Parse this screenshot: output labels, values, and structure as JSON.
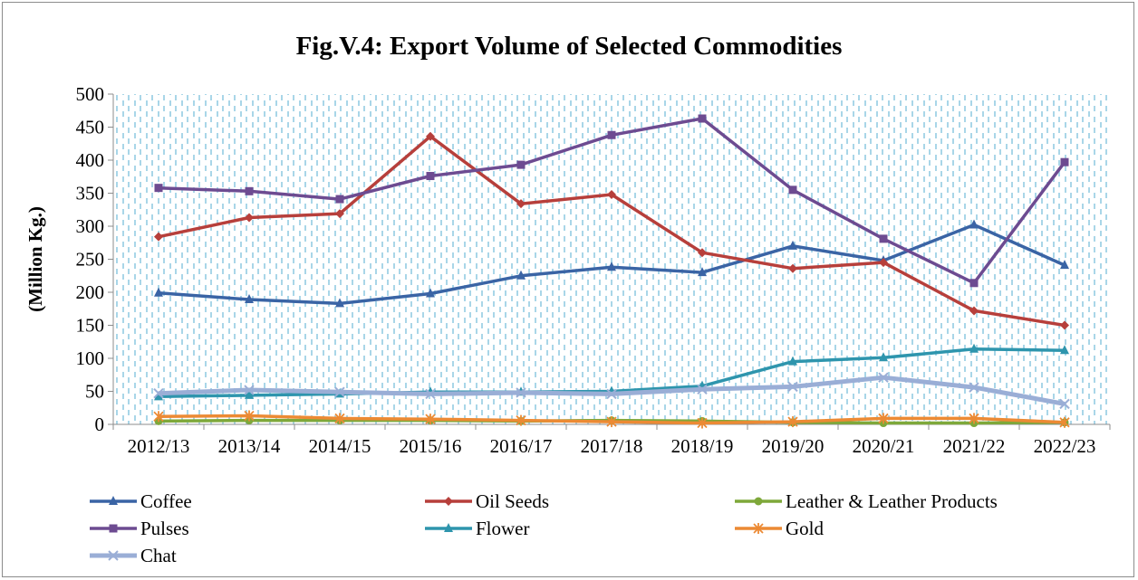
{
  "chart_data": {
    "type": "line",
    "title": "Fig.V.4: Export Volume of Selected Commodities",
    "xlabel": "",
    "ylabel": "(Million Kg.)",
    "ylim": [
      0,
      500
    ],
    "yticks": [
      0,
      50,
      100,
      150,
      200,
      250,
      300,
      350,
      400,
      450,
      500
    ],
    "categories": [
      "2012/13",
      "2013/14",
      "2014/15",
      "2015/16",
      "2016/17",
      "2017/18",
      "2018/19",
      "2019/20",
      "2020/21",
      "2021/22",
      "2022/23"
    ],
    "grid": "vertical dashed",
    "legend_position": "bottom",
    "series": [
      {
        "name": "Coffee",
        "color": "#3a64a5",
        "marker": "triangle",
        "values": [
          199,
          189,
          183,
          198,
          225,
          238,
          230,
          270,
          248,
          302,
          241
        ]
      },
      {
        "name": "Oil Seeds",
        "color": "#b73f3b",
        "marker": "diamond",
        "values": [
          284,
          313,
          319,
          436,
          334,
          348,
          260,
          236,
          245,
          172,
          150
        ]
      },
      {
        "name": "Leather & Leather Products",
        "color": "#7ea83a",
        "marker": "circle",
        "values": [
          5,
          6,
          6,
          6,
          5,
          6,
          5,
          3,
          2,
          2,
          3
        ]
      },
      {
        "name": "Pulses",
        "color": "#6d4b91",
        "marker": "square",
        "values": [
          358,
          353,
          341,
          376,
          393,
          438,
          463,
          355,
          281,
          214,
          397
        ]
      },
      {
        "name": "Flower",
        "color": "#2e95ad",
        "marker": "triangle",
        "values": [
          42,
          44,
          46,
          49,
          49,
          50,
          58,
          95,
          101,
          114,
          112
        ]
      },
      {
        "name": "Gold",
        "color": "#ec8a34",
        "marker": "star",
        "values": [
          12,
          13,
          9,
          8,
          6,
          4,
          2,
          4,
          9,
          9,
          3
        ]
      },
      {
        "name": "Chat",
        "color": "#9aaed6",
        "marker": "x",
        "values": [
          47,
          52,
          49,
          46,
          48,
          46,
          53,
          57,
          71,
          56,
          31
        ]
      }
    ]
  }
}
